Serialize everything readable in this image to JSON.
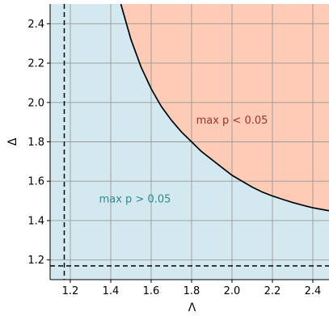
{
  "chart_data": {
    "type": "area",
    "title": "",
    "xlabel": "Λ",
    "ylabel": "Δ",
    "xlim": [
      1.1,
      2.48
    ],
    "ylim": [
      1.1,
      2.5
    ],
    "x_ticks": [
      1.2,
      1.4,
      1.6,
      1.8,
      2.0,
      2.2,
      2.4
    ],
    "x_tick_labels": [
      "1.2",
      "1.4",
      "1.6",
      "1.8",
      "2.0",
      "2.2",
      "2.4"
    ],
    "y_ticks": [
      1.2,
      1.4,
      1.6,
      1.8,
      2.0,
      2.2,
      2.4
    ],
    "y_tick_labels": [
      "1.2",
      "1.4",
      "1.6",
      "1.8",
      "2.0",
      "2.2",
      "2.4"
    ],
    "grid": true,
    "boundary_curve": {
      "x": [
        1.45,
        1.5,
        1.55,
        1.6,
        1.65,
        1.7,
        1.75,
        1.8,
        1.85,
        1.9,
        1.95,
        2.0,
        2.05,
        2.1,
        2.15,
        2.2,
        2.25,
        2.3,
        2.35,
        2.4,
        2.48
      ],
      "y": [
        2.5,
        2.32,
        2.18,
        2.07,
        1.98,
        1.91,
        1.85,
        1.8,
        1.75,
        1.71,
        1.67,
        1.63,
        1.6,
        1.57,
        1.545,
        1.525,
        1.508,
        1.492,
        1.478,
        1.465,
        1.45
      ]
    },
    "reference_lines": {
      "vertical_x": 1.17,
      "horizontal_y": 1.17
    },
    "regions": [
      {
        "label": "max p > 0.05",
        "label_x": 1.52,
        "label_y": 1.51,
        "color": "#d4e8f0",
        "text_color": "#2b8b8b"
      },
      {
        "label": "max p < 0.05",
        "label_x": 2.0,
        "label_y": 1.91,
        "color": "#fdcbb6",
        "text_color": "#a0342e"
      }
    ]
  }
}
